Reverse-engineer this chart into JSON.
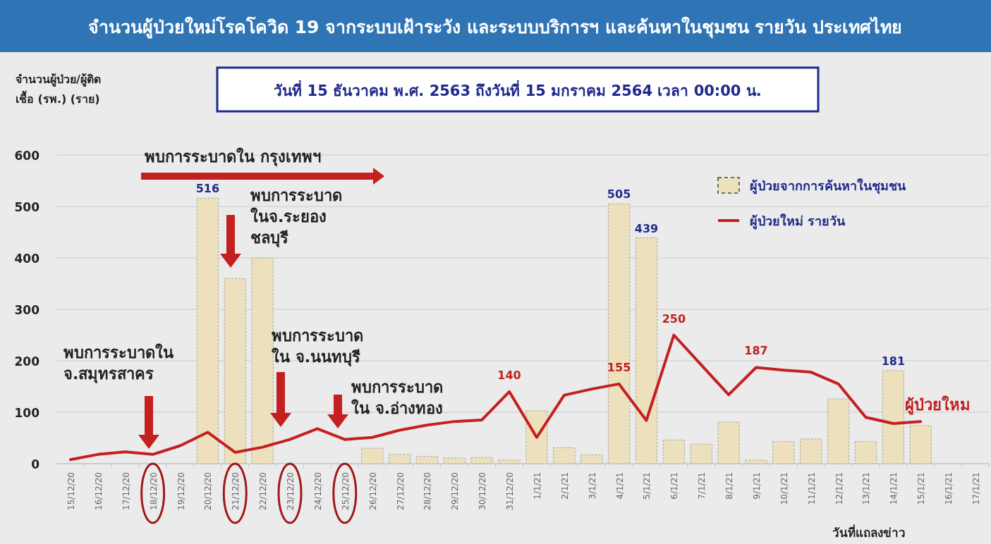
{
  "chart_data": {
    "type": "bar",
    "title": "จำนวนผู้ป่วยใหม่โรคโควิด 19 จากระบบเฝ้าระวัง และระบบบริการฯ และค้นหาในชุมชน รายวัน ประเทศไทย",
    "subtitle": "วันที่ 15 ธันวาคม พ.ศ. 2563 ถึงวันที่ 15 มกราคม 2564 เวลา 00:00 น.",
    "ylabel": "จำนวนผู้ป่วย/ผู้ติดเชื้อ (รพ.) (ราย)",
    "xlabel": "วันที่แถลงข่าว",
    "categories": [
      "15/12/20",
      "16/12/20",
      "17/12/20",
      "18/12/20",
      "19/12/20",
      "20/12/20",
      "21/12/20",
      "22/12/20",
      "23/12/20",
      "24/12/20",
      "25/12/20",
      "26/12/20",
      "27/12/20",
      "28/12/20",
      "29/12/20",
      "30/12/20",
      "31/12/20",
      "1/1/21",
      "2/1/21",
      "3/1/21",
      "4/1/21",
      "5/1/21",
      "6/1/21",
      "7/1/21",
      "8/1/21",
      "9/1/21",
      "10/1/21",
      "11/1/21",
      "12/1/21",
      "13/1/21",
      "14/1/21",
      "15/1/21",
      "16/1/21",
      "17/1/21"
    ],
    "series": [
      {
        "name": "ผู้ป่วยจากการค้นหาในชุมชน",
        "color": "#ede0bd",
        "values": [
          null,
          null,
          null,
          null,
          null,
          516,
          360,
          400,
          null,
          null,
          null,
          30,
          18,
          14,
          11,
          12,
          7,
          103,
          31,
          17,
          505,
          439,
          46,
          38,
          81,
          7,
          43,
          48,
          126,
          43,
          181,
          74,
          null,
          null
        ],
        "value_labels": [
          null,
          null,
          null,
          null,
          null,
          "516",
          null,
          null,
          null,
          null,
          null,
          null,
          null,
          null,
          null,
          null,
          null,
          null,
          null,
          null,
          "505",
          "439",
          null,
          null,
          null,
          null,
          null,
          null,
          null,
          null,
          "181",
          null,
          null,
          null
        ]
      },
      {
        "name": "ผู้ป่วยใหม่ รายวัน",
        "type": "line",
        "color": "#c42020",
        "values": [
          8,
          18,
          23,
          18,
          35,
          61,
          22,
          32,
          47,
          68,
          47,
          51,
          65,
          75,
          82,
          85,
          140,
          51,
          133,
          145,
          155,
          84,
          250,
          192,
          134,
          187,
          182,
          178,
          155,
          90,
          78,
          82,
          null,
          null
        ],
        "value_labels": [
          null,
          null,
          null,
          null,
          null,
          null,
          null,
          null,
          null,
          null,
          null,
          null,
          null,
          null,
          null,
          null,
          "140",
          null,
          null,
          null,
          "155",
          null,
          "250",
          null,
          null,
          "187",
          null,
          null,
          null,
          null,
          null,
          null,
          null,
          null
        ]
      }
    ],
    "ylim": [
      0,
      600
    ],
    "yticks": [
      0,
      100,
      200,
      300,
      400,
      500,
      600
    ],
    "grid": "y",
    "legend": "top right",
    "annotations": [
      "พบการระบาดใน กรุงเทพฯ",
      "พบการระบาดใน\nจ.สมุทรสาคร",
      "พบการระบาด\nในจ.ระยอง\nชลบุรี",
      "พบการระบาด\nใน จ.นนทบุรี",
      "พบการระบาด\nใน จ.อ่างทอง",
      "ผู้ป่วยใหม"
    ]
  }
}
